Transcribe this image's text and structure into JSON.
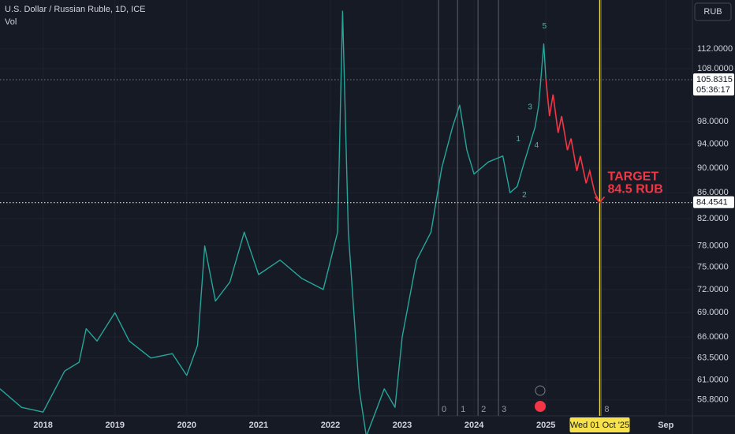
{
  "chart_data": {
    "type": "line",
    "title": "U.S. Dollar / Russian Ruble, 1D, ICE",
    "subtitle": "Vol",
    "toolbar_button": "RUB",
    "log_scale": true,
    "grid": true,
    "xlim": [
      2017.4,
      2027.04
    ],
    "ylim": [
      57.1,
      122.5
    ],
    "xticks": [
      2018,
      2019,
      2020,
      2021,
      2022,
      2023,
      2024,
      2025,
      {
        "value": 2026.67,
        "label": "Sep"
      }
    ],
    "yticks": [
      {
        "value": 58.8,
        "label": "58.8000"
      },
      {
        "value": 61,
        "label": "61.0000"
      },
      {
        "value": 63.5,
        "label": "63.5000"
      },
      {
        "value": 66,
        "label": "66.0000"
      },
      {
        "value": 69,
        "label": "69.0000"
      },
      {
        "value": 72,
        "label": "72.0000"
      },
      {
        "value": 75,
        "label": "75.0000"
      },
      {
        "value": 78,
        "label": "78.0000"
      },
      {
        "value": 82,
        "label": "82.0000"
      },
      {
        "value": 86,
        "label": "86.0000"
      },
      {
        "value": 90,
        "label": "90.0000"
      },
      {
        "value": 94,
        "label": "94.0000"
      },
      {
        "value": 98,
        "label": "98.0000"
      },
      {
        "value": 108,
        "label": "108.0000"
      },
      {
        "value": 112,
        "label": "112.0000"
      }
    ],
    "series": [
      {
        "color": "#26a69a",
        "x": [
          2017.4,
          2017.7,
          2018.0,
          2018.3,
          2018.5,
          2018.6,
          2018.75,
          2019.0,
          2019.2,
          2019.5,
          2019.8,
          2020.0,
          2020.15,
          2020.25,
          2020.4,
          2020.6,
          2020.8,
          2021.0,
          2021.3,
          2021.6,
          2021.9,
          2022.1,
          2022.17,
          2022.25,
          2022.4,
          2022.5,
          2022.75,
          2022.9,
          2023.0,
          2023.2,
          2023.4,
          2023.55,
          2023.7,
          2023.8,
          2023.9,
          2024.0,
          2024.2,
          2024.4,
          2024.5,
          2024.6,
          2024.7,
          2024.85,
          2024.9,
          2024.97,
          2025.0
        ],
        "values": [
          60,
          58,
          57.5,
          62,
          63,
          67,
          65.5,
          69,
          65.5,
          63.5,
          64,
          61.5,
          65,
          78,
          70.5,
          73,
          80,
          74,
          76,
          73.5,
          72,
          80,
          120,
          80,
          60,
          55,
          60,
          58,
          66,
          76,
          80,
          90,
          97,
          101,
          93,
          89,
          91,
          92,
          86,
          87,
          91,
          97,
          101,
          113,
          106
        ]
      }
    ],
    "projection": {
      "color": "#f23645",
      "x": [
        2025.0,
        2025.05,
        2025.1,
        2025.17,
        2025.22,
        2025.3,
        2025.35,
        2025.43,
        2025.48,
        2025.56,
        2025.61,
        2025.68,
        2025.75
      ],
      "values": [
        106,
        99,
        103,
        96,
        99,
        93,
        95,
        89.5,
        92,
        87.5,
        89.5,
        86,
        84.5
      ]
    },
    "price_lines": [
      {
        "value": 105.8315,
        "timer": "05:36:17"
      },
      {
        "value": 84.4541
      }
    ],
    "target": {
      "x": 2025.75,
      "value": 84.5,
      "lines": [
        "TARGET",
        "84.5 RUB"
      ]
    },
    "wave_labels": [
      {
        "label": "5",
        "x": 2024.98,
        "value": 116.7
      },
      {
        "label": "3",
        "x": 2024.78,
        "value": 100.6
      },
      {
        "label": "1",
        "x": 2024.615,
        "value": 94.9
      },
      {
        "label": "4",
        "x": 2024.87,
        "value": 93.8
      },
      {
        "label": "2",
        "x": 2024.7,
        "value": 85.6
      }
    ],
    "time_lines": [
      {
        "value": 2023.505,
        "label": "0"
      },
      {
        "value": 2023.77,
        "label": "1"
      },
      {
        "value": 2024.055,
        "label": "2"
      },
      {
        "value": 2024.34,
        "label": "3"
      },
      {
        "value": 2025.77,
        "label": "8"
      }
    ],
    "cursor": {
      "value": 2025.75,
      "label": "Wed 01 Oct '25"
    }
  }
}
